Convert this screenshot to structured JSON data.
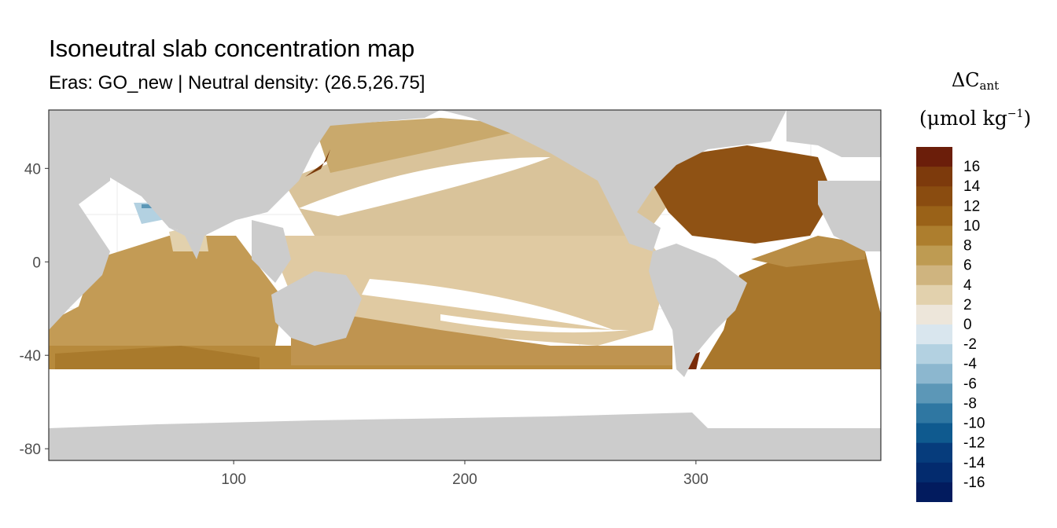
{
  "title": "Isoneutral slab concentration map",
  "subtitle": "Eras: GO_new | Neutral density: (26.5,26.75]",
  "legend": {
    "symbol": "ΔC",
    "subscript": "ant",
    "unit_open": "(μmol kg",
    "unit_sup": "−1",
    "unit_close": ")"
  },
  "colors": {
    "land": "#cccccc",
    "panel_border": "#333333",
    "grid": "#ebebeb",
    "tick_text": "#4d4d4d"
  },
  "chart_data": {
    "type": "heatmap",
    "xlim": [
      20,
      380
    ],
    "ylim": [
      -85,
      65
    ],
    "x_ticks": [
      100,
      200,
      300
    ],
    "y_ticks": [
      40,
      0,
      -40,
      -80
    ],
    "colorbar": {
      "bins": [
        {
          "label": "16",
          "color": "#6b1e0a"
        },
        {
          "label": "14",
          "color": "#7d3a0c"
        },
        {
          "label": "12",
          "color": "#8a4c10"
        },
        {
          "label": "10",
          "color": "#9a6218"
        },
        {
          "label": "8",
          "color": "#ad7e2e"
        },
        {
          "label": "6",
          "color": "#be9b52"
        },
        {
          "label": "4",
          "color": "#cfb47f"
        },
        {
          "label": "2",
          "color": "#e2d1ad"
        },
        {
          "label": "0",
          "color": "#ede6da"
        },
        {
          "label": "-2",
          "color": "#d9e6ee"
        },
        {
          "label": "-4",
          "color": "#b3d1e1"
        },
        {
          "label": "-6",
          "color": "#8cb7cf"
        },
        {
          "label": "-8",
          "color": "#5c97b7"
        },
        {
          "label": "-10",
          "color": "#2f77a2"
        },
        {
          "label": "-12",
          "color": "#0f5a8f"
        },
        {
          "label": "-14",
          "color": "#063c7c"
        },
        {
          "label": "-16",
          "color": "#032b6e"
        }
      ],
      "bottom_color": "#021b5e",
      "range": [
        -18,
        18
      ]
    }
  }
}
